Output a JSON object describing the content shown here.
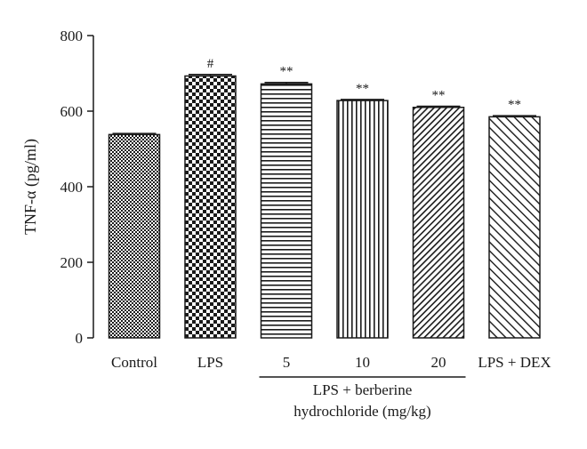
{
  "chart_data": {
    "type": "bar",
    "categories": [
      "Control",
      "LPS",
      "5",
      "10",
      "20",
      "LPS + DEX"
    ],
    "values": [
      538,
      693,
      672,
      628,
      610,
      585
    ],
    "errors": [
      3,
      4,
      4,
      3,
      3,
      3
    ],
    "significance": [
      "",
      "#",
      "**",
      "**",
      "**",
      "**"
    ],
    "ylabel": "TNF-α (pg/ml)",
    "ylim": [
      0,
      800
    ],
    "yticks": [
      0,
      200,
      400,
      600,
      800
    ],
    "ytick_labels": [
      "0",
      "200",
      "400",
      "600",
      "800"
    ],
    "group_label_line1": "LPS + berberine",
    "group_label_line2": "hydrochloride (mg/kg)",
    "patterns": [
      "dots-dense",
      "checker",
      "horizontal-lines",
      "vertical-lines",
      "diagonal-dense",
      "diagonal-sparse"
    ],
    "grid": false,
    "legend": "none",
    "colors": {
      "ink": "#1a1a1a",
      "background": "#ffffff"
    }
  }
}
